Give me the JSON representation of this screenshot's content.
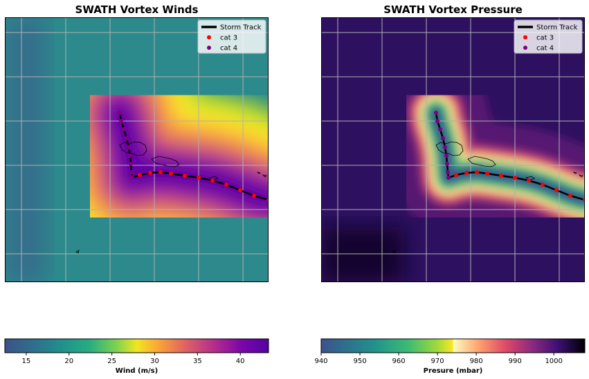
{
  "chart_data": [
    {
      "type": "heatmap",
      "title": "SWATH Vortex Winds",
      "colormap": "plasma_r",
      "colorbar": {
        "label": "Wind (m/s)",
        "min": 12.5,
        "max": 43.3,
        "ticks": [
          15,
          20,
          25,
          30,
          35,
          40
        ]
      },
      "legend": {
        "placement": "top-right",
        "entries": [
          {
            "label": "Storm Track",
            "marker": "line",
            "color": "#000000"
          },
          {
            "label": "cat 3",
            "marker": "dot",
            "color": "#ff0000"
          },
          {
            "label": "cat 4",
            "marker": "dot",
            "color": "#800080"
          }
        ]
      },
      "grid": true
    },
    {
      "type": "heatmap",
      "title": "SWATH Vortex Pressure",
      "colormap": "viridis-magma composite",
      "colorbar": {
        "label": "Presure (mbar)",
        "min": 940,
        "max": 1008,
        "ticks": [
          940,
          950,
          960,
          970,
          980,
          990,
          1000
        ]
      },
      "legend": {
        "placement": "top-right",
        "entries": [
          {
            "label": "Storm Track",
            "marker": "line",
            "color": "#000000"
          },
          {
            "label": "cat 3",
            "marker": "dot",
            "color": "#ff0000"
          },
          {
            "label": "cat 4",
            "marker": "dot",
            "color": "#800080"
          }
        ]
      },
      "grid": true
    }
  ]
}
